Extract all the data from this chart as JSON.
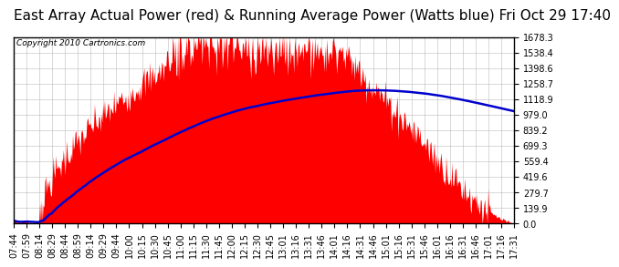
{
  "title": "East Array Actual Power (red) & Running Average Power (Watts blue) Fri Oct 29 17:40",
  "copyright": "Copyright 2010 Cartronics.com",
  "ymax": 1678.3,
  "yticks": [
    0.0,
    139.9,
    279.7,
    419.6,
    559.4,
    699.3,
    839.2,
    979.0,
    1118.9,
    1258.7,
    1398.6,
    1538.4,
    1678.3
  ],
  "bg_color": "#ffffff",
  "plot_bg_color": "#ffffff",
  "grid_color": "#bbbbbb",
  "fill_color": "#ff0000",
  "avg_line_color": "#0000cc",
  "title_fontsize": 11,
  "tick_label_fontsize": 7,
  "x_labels": [
    "07:44",
    "07:59",
    "08:14",
    "08:29",
    "08:44",
    "08:59",
    "09:14",
    "09:29",
    "09:44",
    "10:00",
    "10:15",
    "10:30",
    "10:45",
    "11:00",
    "11:15",
    "11:30",
    "11:45",
    "12:00",
    "12:15",
    "12:30",
    "12:45",
    "13:01",
    "13:16",
    "13:31",
    "13:46",
    "14:01",
    "14:16",
    "14:31",
    "14:46",
    "15:01",
    "15:16",
    "15:31",
    "15:46",
    "16:01",
    "16:16",
    "16:31",
    "16:46",
    "17:01",
    "17:16",
    "17:31"
  ]
}
